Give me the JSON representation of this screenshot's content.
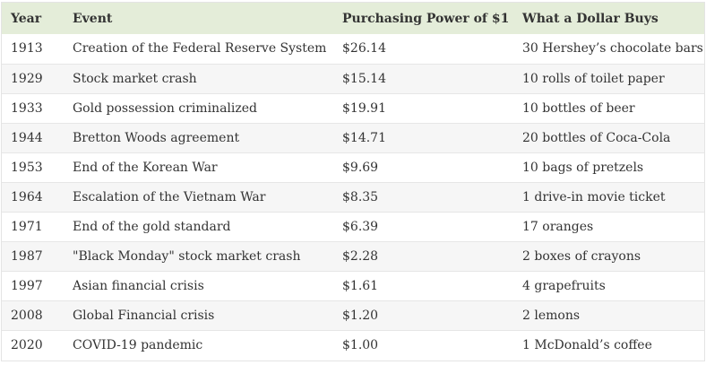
{
  "table": {
    "headers": [
      "Year",
      "Event",
      "Purchasing Power of $1",
      "What a Dollar Buys"
    ],
    "rows": [
      [
        "1913",
        "Creation of the Federal Reserve System",
        "$26.14",
        "30 Hershey’s chocolate bars"
      ],
      [
        "1929",
        "Stock market crash",
        "$15.14",
        "10 rolls of toilet paper"
      ],
      [
        "1933",
        "Gold possession criminalized",
        "$19.91",
        "10 bottles of beer"
      ],
      [
        "1944",
        "Bretton Woods agreement",
        "$14.71",
        "20 bottles of Coca-Cola"
      ],
      [
        "1953",
        "End of the Korean War",
        "$9.69",
        "10 bags of pretzels"
      ],
      [
        "1964",
        "Escalation of the Vietnam War",
        "$8.35",
        "1 drive-in movie ticket"
      ],
      [
        "1971",
        "End of the gold standard",
        "$6.39",
        "17 oranges"
      ],
      [
        "1987",
        "\"Black Monday\" stock market crash",
        "$2.28",
        "2 boxes of crayons"
      ],
      [
        "1997",
        "Asian financial crisis",
        "$1.61",
        "4 grapefruits"
      ],
      [
        "2008",
        "Global Financial crisis",
        "$1.20",
        "2 lemons"
      ],
      [
        "2020",
        "COVID-19 pandemic",
        "$1.00",
        "1 McDonald’s coffee"
      ]
    ]
  },
  "colors": {
    "header_bg": "#e4edd9",
    "stripe_bg": "#f6f6f6",
    "text": "#333333"
  }
}
